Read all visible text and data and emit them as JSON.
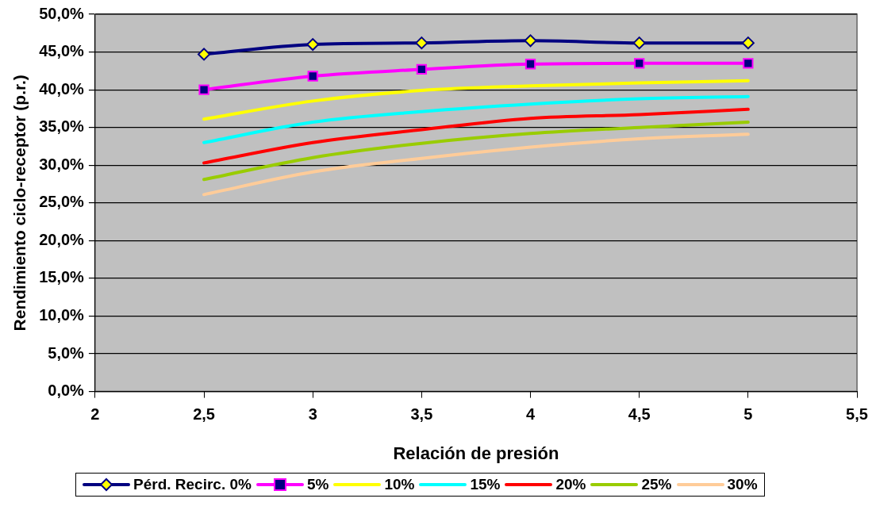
{
  "chart_data": {
    "type": "line",
    "xlabel": "Relación de presión",
    "ylabel": "Rendimiento ciclo-receptor (p.r.)",
    "x": [
      2.5,
      3,
      3.5,
      4,
      4.5,
      5
    ],
    "series": [
      {
        "name": "Pérd. Recirc. 0%",
        "color": "#000080",
        "marker": "diamond",
        "values": [
          44.7,
          46.0,
          46.2,
          46.5,
          46.2,
          46.2
        ]
      },
      {
        "name": "5%",
        "color": "#ff00ff",
        "marker": "square",
        "values": [
          40.0,
          41.8,
          42.7,
          43.4,
          43.5,
          43.5
        ]
      },
      {
        "name": "10%",
        "color": "#ffff00",
        "values": [
          36.1,
          38.5,
          39.9,
          40.5,
          40.9,
          41.2
        ]
      },
      {
        "name": "15%",
        "color": "#00ffff",
        "values": [
          33.0,
          35.7,
          37.1,
          38.1,
          38.8,
          39.1
        ]
      },
      {
        "name": "20%",
        "color": "#ff0000",
        "values": [
          30.3,
          33.0,
          34.7,
          36.2,
          36.7,
          37.4
        ]
      },
      {
        "name": "25%",
        "color": "#99cc00",
        "values": [
          28.1,
          31.0,
          32.9,
          34.2,
          35.0,
          35.7
        ]
      },
      {
        "name": "30%",
        "color": "#ffcc99",
        "values": [
          26.1,
          29.1,
          30.9,
          32.4,
          33.5,
          34.1
        ]
      }
    ],
    "xlim": [
      2,
      5.5
    ],
    "xticks": [
      2,
      {
        "value": 2.5,
        "label": "2,5"
      },
      3,
      {
        "value": 3.5,
        "label": "3,5"
      },
      4,
      {
        "value": 4.5,
        "label": "4,5"
      },
      5,
      {
        "value": 5.5,
        "label": "5,5"
      }
    ],
    "ylim": [
      0,
      50
    ],
    "yticks": [
      {
        "value": 0,
        "label": "0,0%"
      },
      {
        "value": 5,
        "label": "5,0%"
      },
      {
        "value": 10,
        "label": "10,0%"
      },
      {
        "value": 15,
        "label": "15,0%"
      },
      {
        "value": 20,
        "label": "20,0%"
      },
      {
        "value": 25,
        "label": "25,0%"
      },
      {
        "value": 30,
        "label": "30,0%"
      },
      {
        "value": 35,
        "label": "35,0%"
      },
      {
        "value": 40,
        "label": "40,0%"
      },
      {
        "value": 45,
        "label": "45,0%"
      },
      {
        "value": 50,
        "label": "50,0%"
      }
    ],
    "grid": "y",
    "legend": "bottom"
  }
}
